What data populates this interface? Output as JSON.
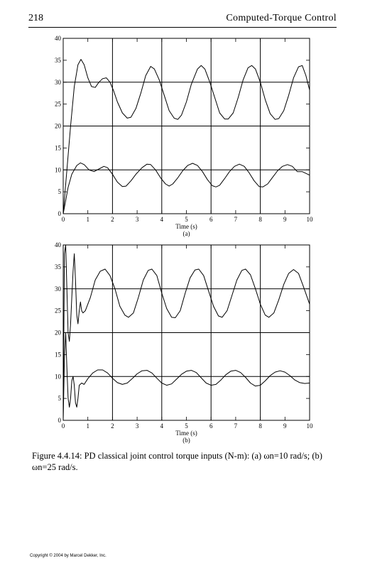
{
  "page": {
    "number": "218",
    "running_header": "Computed-Torque Control",
    "caption": "Figure 4.4.14: PD classical joint control torque inputs (N-m): (a) ωn=10 rad/s; (b) ωn=25 rad/s.",
    "copyright": "Copyright © 2004 by Marcel Dekker, Inc."
  },
  "chart_data": [
    {
      "type": "line",
      "panel_label": "(a)",
      "xlabel": "Time (s)",
      "ylabel": "",
      "xlim": [
        0,
        10
      ],
      "ylim": [
        0,
        40
      ],
      "x_ticks": [
        "0",
        "1",
        "2",
        "3",
        "4",
        "5",
        "6",
        "7",
        "8",
        "9",
        "10"
      ],
      "y_ticks": [
        "0",
        "5",
        "10",
        "15",
        "20",
        "25",
        "30",
        "35",
        "40"
      ],
      "grid": true,
      "series": [
        {
          "values": [
            [
              0,
              0
            ],
            [
              0.15,
              10
            ],
            [
              0.3,
              20
            ],
            [
              0.45,
              29
            ],
            [
              0.6,
              34
            ],
            [
              0.72,
              35.2
            ],
            [
              0.85,
              34
            ],
            [
              1.0,
              31
            ],
            [
              1.15,
              29
            ],
            [
              1.3,
              28.8
            ],
            [
              1.45,
              30
            ],
            [
              1.6,
              30.8
            ],
            [
              1.75,
              31
            ],
            [
              1.9,
              30
            ],
            [
              2.05,
              28
            ],
            [
              2.2,
              25.5
            ],
            [
              2.4,
              23
            ],
            [
              2.6,
              21.8
            ],
            [
              2.75,
              22
            ],
            [
              2.95,
              24
            ],
            [
              3.15,
              27.5
            ],
            [
              3.35,
              31.5
            ],
            [
              3.55,
              33.6
            ],
            [
              3.7,
              33
            ],
            [
              3.9,
              30.5
            ],
            [
              4.1,
              27
            ],
            [
              4.3,
              23.5
            ],
            [
              4.5,
              21.8
            ],
            [
              4.65,
              21.5
            ],
            [
              4.8,
              22.5
            ],
            [
              5.0,
              25.5
            ],
            [
              5.2,
              29.5
            ],
            [
              5.45,
              33
            ],
            [
              5.6,
              33.8
            ],
            [
              5.75,
              33
            ],
            [
              5.95,
              30
            ],
            [
              6.15,
              26.5
            ],
            [
              6.35,
              23
            ],
            [
              6.55,
              21.6
            ],
            [
              6.7,
              21.6
            ],
            [
              6.9,
              23
            ],
            [
              7.1,
              26.5
            ],
            [
              7.3,
              30.5
            ],
            [
              7.5,
              33.3
            ],
            [
              7.65,
              33.8
            ],
            [
              7.8,
              33
            ],
            [
              8.0,
              30
            ],
            [
              8.2,
              26
            ],
            [
              8.4,
              22.8
            ],
            [
              8.6,
              21.5
            ],
            [
              8.75,
              21.7
            ],
            [
              8.95,
              23.5
            ],
            [
              9.15,
              27
            ],
            [
              9.35,
              31
            ],
            [
              9.55,
              33.5
            ],
            [
              9.7,
              33.8
            ],
            [
              9.85,
              31.5
            ],
            [
              10.0,
              28.2
            ]
          ]
        },
        {
          "values": [
            [
              0,
              0
            ],
            [
              0.1,
              3
            ],
            [
              0.2,
              6
            ],
            [
              0.35,
              9
            ],
            [
              0.55,
              11
            ],
            [
              0.7,
              11.6
            ],
            [
              0.85,
              11.2
            ],
            [
              1.05,
              10
            ],
            [
              1.25,
              9.6
            ],
            [
              1.45,
              10.2
            ],
            [
              1.65,
              10.8
            ],
            [
              1.8,
              10.5
            ],
            [
              2.0,
              9
            ],
            [
              2.2,
              7.2
            ],
            [
              2.4,
              6.2
            ],
            [
              2.55,
              6.3
            ],
            [
              2.75,
              7.5
            ],
            [
              2.95,
              9
            ],
            [
              3.2,
              10.5
            ],
            [
              3.4,
              11.3
            ],
            [
              3.55,
              11.2
            ],
            [
              3.75,
              10
            ],
            [
              3.95,
              8.2
            ],
            [
              4.15,
              6.8
            ],
            [
              4.3,
              6.3
            ],
            [
              4.45,
              6.8
            ],
            [
              4.65,
              8.2
            ],
            [
              4.85,
              9.8
            ],
            [
              5.05,
              11
            ],
            [
              5.25,
              11.5
            ],
            [
              5.45,
              11
            ],
            [
              5.65,
              9.6
            ],
            [
              5.85,
              7.8
            ],
            [
              6.05,
              6.4
            ],
            [
              6.2,
              6.1
            ],
            [
              6.35,
              6.5
            ],
            [
              6.55,
              8
            ],
            [
              6.75,
              9.6
            ],
            [
              6.95,
              10.8
            ],
            [
              7.15,
              11.3
            ],
            [
              7.35,
              10.8
            ],
            [
              7.55,
              9.3
            ],
            [
              7.75,
              7.5
            ],
            [
              7.95,
              6.2
            ],
            [
              8.1,
              6.1
            ],
            [
              8.3,
              6.8
            ],
            [
              8.5,
              8.3
            ],
            [
              8.7,
              9.8
            ],
            [
              8.9,
              10.8
            ],
            [
              9.1,
              11.2
            ],
            [
              9.3,
              10.8
            ],
            [
              9.5,
              9.6
            ],
            [
              9.7,
              9.6
            ],
            [
              9.85,
              9.2
            ],
            [
              10.0,
              8.8
            ]
          ]
        }
      ]
    },
    {
      "type": "line",
      "panel_label": "(b)",
      "xlabel": "Time (s)",
      "ylabel": "",
      "xlim": [
        0,
        10
      ],
      "ylim": [
        0,
        40
      ],
      "x_ticks": [
        "0",
        "1",
        "2",
        "3",
        "4",
        "5",
        "6",
        "7",
        "8",
        "9",
        "10"
      ],
      "y_ticks": [
        "0",
        "5",
        "10",
        "15",
        "20",
        "25",
        "30",
        "35",
        "40"
      ],
      "grid": true,
      "series": [
        {
          "values": [
            [
              0,
              0
            ],
            [
              0.05,
              38
            ],
            [
              0.1,
              40
            ],
            [
              0.15,
              30
            ],
            [
              0.2,
              20
            ],
            [
              0.25,
              18
            ],
            [
              0.3,
              22
            ],
            [
              0.35,
              28
            ],
            [
              0.4,
              34
            ],
            [
              0.45,
              38
            ],
            [
              0.5,
              32
            ],
            [
              0.55,
              24
            ],
            [
              0.6,
              22
            ],
            [
              0.65,
              25
            ],
            [
              0.7,
              27
            ],
            [
              0.75,
              25
            ],
            [
              0.8,
              24.5
            ],
            [
              0.9,
              25
            ],
            [
              1.1,
              28
            ],
            [
              1.3,
              32
            ],
            [
              1.5,
              34
            ],
            [
              1.7,
              34.5
            ],
            [
              1.9,
              33
            ],
            [
              2.1,
              30
            ],
            [
              2.3,
              26
            ],
            [
              2.5,
              24
            ],
            [
              2.65,
              23.5
            ],
            [
              2.85,
              24.5
            ],
            [
              3.05,
              28
            ],
            [
              3.25,
              32
            ],
            [
              3.45,
              34.2
            ],
            [
              3.6,
              34.5
            ],
            [
              3.8,
              33
            ],
            [
              4.0,
              29
            ],
            [
              4.2,
              25.5
            ],
            [
              4.4,
              23.5
            ],
            [
              4.55,
              23.4
            ],
            [
              4.75,
              25
            ],
            [
              4.95,
              29
            ],
            [
              5.15,
              32.5
            ],
            [
              5.35,
              34.3
            ],
            [
              5.5,
              34.5
            ],
            [
              5.7,
              33
            ],
            [
              5.9,
              29.5
            ],
            [
              6.1,
              26
            ],
            [
              6.3,
              23.8
            ],
            [
              6.45,
              23.5
            ],
            [
              6.65,
              25
            ],
            [
              6.85,
              28.5
            ],
            [
              7.05,
              32
            ],
            [
              7.25,
              34.2
            ],
            [
              7.4,
              34.5
            ],
            [
              7.6,
              33.2
            ],
            [
              7.8,
              30
            ],
            [
              8.0,
              26.5
            ],
            [
              8.2,
              24
            ],
            [
              8.35,
              23.5
            ],
            [
              8.55,
              24.5
            ],
            [
              8.75,
              27.5
            ],
            [
              8.95,
              31
            ],
            [
              9.15,
              33.5
            ],
            [
              9.35,
              34.4
            ],
            [
              9.55,
              33.5
            ],
            [
              9.75,
              30.5
            ],
            [
              10.0,
              26.5
            ]
          ]
        },
        {
          "values": [
            [
              0,
              0
            ],
            [
              0.05,
              14
            ],
            [
              0.1,
              20
            ],
            [
              0.15,
              12
            ],
            [
              0.2,
              5
            ],
            [
              0.25,
              3
            ],
            [
              0.3,
              5
            ],
            [
              0.35,
              9
            ],
            [
              0.4,
              10
            ],
            [
              0.45,
              8
            ],
            [
              0.5,
              4
            ],
            [
              0.55,
              3
            ],
            [
              0.6,
              5
            ],
            [
              0.65,
              8
            ],
            [
              0.75,
              8.5
            ],
            [
              0.85,
              8.2
            ],
            [
              1.0,
              9.5
            ],
            [
              1.2,
              10.8
            ],
            [
              1.4,
              11.5
            ],
            [
              1.6,
              11.5
            ],
            [
              1.8,
              10.8
            ],
            [
              2.0,
              9.6
            ],
            [
              2.2,
              8.6
            ],
            [
              2.4,
              8.2
            ],
            [
              2.6,
              8.5
            ],
            [
              2.8,
              9.5
            ],
            [
              3.0,
              10.6
            ],
            [
              3.2,
              11.3
            ],
            [
              3.4,
              11.4
            ],
            [
              3.6,
              10.8
            ],
            [
              3.8,
              9.6
            ],
            [
              4.0,
              8.5
            ],
            [
              4.2,
              8.0
            ],
            [
              4.4,
              8.3
            ],
            [
              4.6,
              9.4
            ],
            [
              4.8,
              10.5
            ],
            [
              5.0,
              11.2
            ],
            [
              5.2,
              11.4
            ],
            [
              5.4,
              10.9
            ],
            [
              5.6,
              9.7
            ],
            [
              5.8,
              8.5
            ],
            [
              6.0,
              8.0
            ],
            [
              6.2,
              8.2
            ],
            [
              6.4,
              9.2
            ],
            [
              6.6,
              10.4
            ],
            [
              6.8,
              11.2
            ],
            [
              7.0,
              11.4
            ],
            [
              7.2,
              10.9
            ],
            [
              7.4,
              9.8
            ],
            [
              7.6,
              8.5
            ],
            [
              7.8,
              7.8
            ],
            [
              8.0,
              8.0
            ],
            [
              8.2,
              9.0
            ],
            [
              8.4,
              10.2
            ],
            [
              8.6,
              11.0
            ],
            [
              8.8,
              11.3
            ],
            [
              9.0,
              11.0
            ],
            [
              9.2,
              10.2
            ],
            [
              9.4,
              9.2
            ],
            [
              9.6,
              8.6
            ],
            [
              9.8,
              8.4
            ],
            [
              10.0,
              8.5
            ]
          ]
        }
      ]
    }
  ]
}
